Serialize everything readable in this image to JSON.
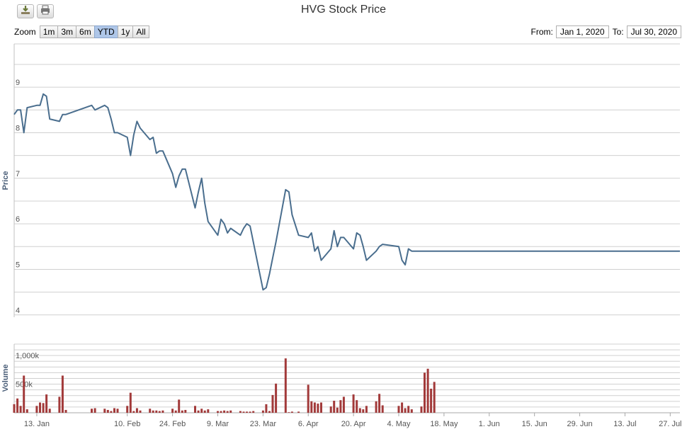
{
  "toolbar": {
    "download_icon": "download-icon",
    "print_icon": "print-icon"
  },
  "title": "HVG Stock Price",
  "zoom": {
    "label": "Zoom",
    "buttons": [
      "1m",
      "3m",
      "6m",
      "YTD",
      "1y",
      "All"
    ],
    "active": "YTD"
  },
  "range": {
    "from_label": "From:",
    "from_value": "Jan 1, 2020",
    "to_label": "To:",
    "to_value": "Jul 30, 2020"
  },
  "colors": {
    "price_line": "#4a6e8e",
    "volume_bar": "#a23a3a",
    "grid": "#d0d0d0",
    "active_zoom": "#aec6e8"
  },
  "chart_data": [
    {
      "type": "line",
      "ylabel": "Price",
      "ylim": [
        3.95,
        9.95
      ],
      "yticks": [
        4,
        5,
        6,
        7,
        8,
        9
      ],
      "xlim": [
        "2020-01-06",
        "2020-07-30"
      ],
      "xticks": [
        {
          "date": "2020-01-13",
          "label": "13. Jan"
        },
        {
          "date": "2020-02-10",
          "label": "10. Feb"
        },
        {
          "date": "2020-02-24",
          "label": "24. Feb"
        },
        {
          "date": "2020-03-09",
          "label": "9. Mar"
        },
        {
          "date": "2020-03-23",
          "label": "23. Mar"
        },
        {
          "date": "2020-04-06",
          "label": "6. Apr"
        },
        {
          "date": "2020-04-20",
          "label": "20. Apr"
        },
        {
          "date": "2020-05-04",
          "label": "4. May"
        },
        {
          "date": "2020-05-18",
          "label": "18. May"
        },
        {
          "date": "2020-06-01",
          "label": "1. Jun"
        },
        {
          "date": "2020-06-15",
          "label": "15. Jun"
        },
        {
          "date": "2020-06-29",
          "label": "29. Jun"
        },
        {
          "date": "2020-07-13",
          "label": "13. Jul"
        },
        {
          "date": "2020-07-27",
          "label": "27. Jul"
        }
      ],
      "series": [
        {
          "points": [
            [
              "2020-01-06",
              8.4
            ],
            [
              "2020-01-07",
              8.5
            ],
            [
              "2020-01-08",
              8.5
            ],
            [
              "2020-01-09",
              8.0
            ],
            [
              "2020-01-10",
              8.55
            ],
            [
              "2020-01-13",
              8.6
            ],
            [
              "2020-01-14",
              8.6
            ],
            [
              "2020-01-15",
              8.85
            ],
            [
              "2020-01-16",
              8.8
            ],
            [
              "2020-01-17",
              8.3
            ],
            [
              "2020-01-20",
              8.25
            ],
            [
              "2020-01-21",
              8.4
            ],
            [
              "2020-01-22",
              8.4
            ],
            [
              "2020-01-30",
              8.6
            ],
            [
              "2020-01-31",
              8.5
            ],
            [
              "2020-02-03",
              8.6
            ],
            [
              "2020-02-04",
              8.55
            ],
            [
              "2020-02-05",
              8.3
            ],
            [
              "2020-02-06",
              8.0
            ],
            [
              "2020-02-07",
              8.0
            ],
            [
              "2020-02-10",
              7.9
            ],
            [
              "2020-02-11",
              7.5
            ],
            [
              "2020-02-12",
              7.95
            ],
            [
              "2020-02-13",
              8.25
            ],
            [
              "2020-02-14",
              8.1
            ],
            [
              "2020-02-17",
              7.85
            ],
            [
              "2020-02-18",
              7.9
            ],
            [
              "2020-02-19",
              7.55
            ],
            [
              "2020-02-20",
              7.6
            ],
            [
              "2020-02-21",
              7.6
            ],
            [
              "2020-02-24",
              7.1
            ],
            [
              "2020-02-25",
              6.8
            ],
            [
              "2020-02-26",
              7.05
            ],
            [
              "2020-02-27",
              7.2
            ],
            [
              "2020-02-28",
              7.2
            ],
            [
              "2020-03-02",
              6.35
            ],
            [
              "2020-03-03",
              6.7
            ],
            [
              "2020-03-04",
              7.0
            ],
            [
              "2020-03-05",
              6.45
            ],
            [
              "2020-03-06",
              6.05
            ],
            [
              "2020-03-09",
              5.75
            ],
            [
              "2020-03-10",
              6.1
            ],
            [
              "2020-03-11",
              6.0
            ],
            [
              "2020-03-12",
              5.8
            ],
            [
              "2020-03-13",
              5.9
            ],
            [
              "2020-03-16",
              5.75
            ],
            [
              "2020-03-17",
              5.9
            ],
            [
              "2020-03-18",
              6.0
            ],
            [
              "2020-03-19",
              5.95
            ],
            [
              "2020-03-20",
              5.6
            ],
            [
              "2020-03-23",
              4.55
            ],
            [
              "2020-03-24",
              4.6
            ],
            [
              "2020-03-25",
              4.9
            ],
            [
              "2020-03-26",
              5.25
            ],
            [
              "2020-03-27",
              5.6
            ],
            [
              "2020-03-30",
              6.75
            ],
            [
              "2020-03-31",
              6.7
            ],
            [
              "2020-04-01",
              6.2
            ],
            [
              "2020-04-03",
              5.75
            ],
            [
              "2020-04-06",
              5.7
            ],
            [
              "2020-04-07",
              5.8
            ],
            [
              "2020-04-08",
              5.4
            ],
            [
              "2020-04-09",
              5.5
            ],
            [
              "2020-04-10",
              5.2
            ],
            [
              "2020-04-13",
              5.45
            ],
            [
              "2020-04-14",
              5.85
            ],
            [
              "2020-04-15",
              5.5
            ],
            [
              "2020-04-16",
              5.7
            ],
            [
              "2020-04-17",
              5.7
            ],
            [
              "2020-04-20",
              5.45
            ],
            [
              "2020-04-21",
              5.8
            ],
            [
              "2020-04-22",
              5.75
            ],
            [
              "2020-04-23",
              5.5
            ],
            [
              "2020-04-24",
              5.2
            ],
            [
              "2020-04-27",
              5.4
            ],
            [
              "2020-04-28",
              5.5
            ],
            [
              "2020-04-29",
              5.55
            ],
            [
              "2020-05-04",
              5.5
            ],
            [
              "2020-05-05",
              5.2
            ],
            [
              "2020-05-06",
              5.1
            ],
            [
              "2020-05-07",
              5.45
            ],
            [
              "2020-05-08",
              5.4
            ],
            [
              "2020-07-30",
              5.4
            ]
          ]
        }
      ]
    },
    {
      "type": "bar",
      "ylabel": "Volume",
      "ylim": [
        0,
        1200000
      ],
      "yticks": [
        {
          "value": 500000,
          "label": "500k"
        },
        {
          "value": 1000000,
          "label": "1,000k"
        }
      ],
      "series": [
        {
          "points": [
            [
              "2020-01-06",
              150000
            ],
            [
              "2020-01-07",
              250000
            ],
            [
              "2020-01-08",
              120000
            ],
            [
              "2020-01-09",
              650000
            ],
            [
              "2020-01-10",
              60000
            ],
            [
              "2020-01-13",
              120000
            ],
            [
              "2020-01-14",
              180000
            ],
            [
              "2020-01-15",
              170000
            ],
            [
              "2020-01-16",
              320000
            ],
            [
              "2020-01-17",
              70000
            ],
            [
              "2020-01-20",
              280000
            ],
            [
              "2020-01-21",
              650000
            ],
            [
              "2020-01-22",
              50000
            ],
            [
              "2020-01-30",
              70000
            ],
            [
              "2020-01-31",
              80000
            ],
            [
              "2020-02-03",
              70000
            ],
            [
              "2020-02-04",
              50000
            ],
            [
              "2020-02-05",
              30000
            ],
            [
              "2020-02-06",
              80000
            ],
            [
              "2020-02-07",
              70000
            ],
            [
              "2020-02-10",
              120000
            ],
            [
              "2020-02-11",
              350000
            ],
            [
              "2020-02-12",
              30000
            ],
            [
              "2020-02-13",
              80000
            ],
            [
              "2020-02-14",
              40000
            ],
            [
              "2020-02-17",
              70000
            ],
            [
              "2020-02-18",
              40000
            ],
            [
              "2020-02-19",
              40000
            ],
            [
              "2020-02-20",
              30000
            ],
            [
              "2020-02-21",
              40000
            ],
            [
              "2020-02-24",
              70000
            ],
            [
              "2020-02-25",
              40000
            ],
            [
              "2020-02-26",
              230000
            ],
            [
              "2020-02-27",
              40000
            ],
            [
              "2020-02-28",
              50000
            ],
            [
              "2020-03-02",
              120000
            ],
            [
              "2020-03-03",
              40000
            ],
            [
              "2020-03-04",
              70000
            ],
            [
              "2020-03-05",
              40000
            ],
            [
              "2020-03-06",
              60000
            ],
            [
              "2020-03-09",
              30000
            ],
            [
              "2020-03-10",
              30000
            ],
            [
              "2020-03-11",
              40000
            ],
            [
              "2020-03-12",
              30000
            ],
            [
              "2020-03-13",
              40000
            ],
            [
              "2020-03-16",
              30000
            ],
            [
              "2020-03-17",
              20000
            ],
            [
              "2020-03-18",
              20000
            ],
            [
              "2020-03-19",
              20000
            ],
            [
              "2020-03-20",
              30000
            ],
            [
              "2020-03-23",
              40000
            ],
            [
              "2020-03-24",
              150000
            ],
            [
              "2020-03-25",
              30000
            ],
            [
              "2020-03-26",
              310000
            ],
            [
              "2020-03-27",
              510000
            ],
            [
              "2020-03-30",
              950000
            ],
            [
              "2020-03-31",
              10000
            ],
            [
              "2020-04-01",
              20000
            ],
            [
              "2020-04-03",
              20000
            ],
            [
              "2020-04-06",
              490000
            ],
            [
              "2020-04-07",
              200000
            ],
            [
              "2020-04-08",
              180000
            ],
            [
              "2020-04-09",
              160000
            ],
            [
              "2020-04-10",
              180000
            ],
            [
              "2020-04-13",
              110000
            ],
            [
              "2020-04-14",
              210000
            ],
            [
              "2020-04-15",
              90000
            ],
            [
              "2020-04-16",
              220000
            ],
            [
              "2020-04-17",
              280000
            ],
            [
              "2020-04-20",
              320000
            ],
            [
              "2020-04-21",
              220000
            ],
            [
              "2020-04-22",
              80000
            ],
            [
              "2020-04-23",
              60000
            ],
            [
              "2020-04-24",
              120000
            ],
            [
              "2020-04-27",
              200000
            ],
            [
              "2020-04-28",
              330000
            ],
            [
              "2020-04-29",
              130000
            ],
            [
              "2020-05-04",
              120000
            ],
            [
              "2020-05-05",
              180000
            ],
            [
              "2020-05-06",
              80000
            ],
            [
              "2020-05-07",
              120000
            ],
            [
              "2020-05-08",
              60000
            ],
            [
              "2020-05-11",
              110000
            ],
            [
              "2020-05-12",
              700000
            ],
            [
              "2020-05-13",
              770000
            ],
            [
              "2020-05-14",
              420000
            ],
            [
              "2020-05-15",
              540000
            ]
          ]
        }
      ]
    }
  ]
}
